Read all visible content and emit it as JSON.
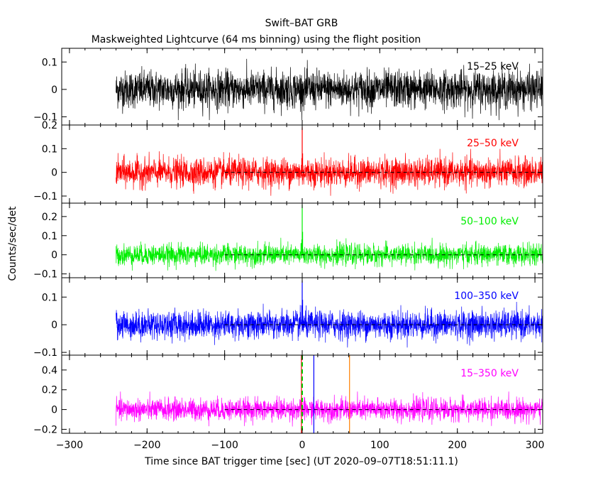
{
  "title": "Swift–BAT GRB",
  "subtitle": "Maskweighted Lightcurve (64 ms binning) using the flight position",
  "chart_data": {
    "type": "line",
    "title": "Swift–BAT GRB",
    "subtitle": "Maskweighted Lightcurve (64 ms binning) using the flight position",
    "xlabel": "Time since BAT trigger time [sec] (UT 2020–09–07T18:51:11.1)",
    "ylabel": "Counts/sec/det",
    "xlim": [
      -310,
      310
    ],
    "x_ticks": [
      -300,
      -200,
      -100,
      0,
      100,
      200,
      300
    ],
    "x_tick_labels": [
      "−300",
      "−200",
      "−100",
      "0",
      "100",
      "200",
      "300"
    ],
    "data_x_range": [
      -240,
      310
    ],
    "grid": false,
    "panels": [
      {
        "name": "15–25 keV",
        "color": "#000000",
        "ylim": [
          -0.13,
          0.15
        ],
        "yticks": [
          0.1,
          0,
          -0.1
        ],
        "ytick_labels": [
          "0.1",
          "0",
          "−0.1"
        ],
        "noise_sigma": 0.034,
        "zero_line": false,
        "spikes": []
      },
      {
        "name": "25–50 keV",
        "color": "#ff0000",
        "ylim": [
          -0.13,
          0.2
        ],
        "yticks": [
          0.2,
          0.1,
          0,
          -0.1
        ],
        "ytick_labels": [
          "0.2",
          "0.1",
          "0",
          "−0.1"
        ],
        "noise_sigma": 0.03,
        "zero_line": true,
        "spikes": [
          {
            "x": 0,
            "y": 0.19
          },
          {
            "x": 0.5,
            "y": 0.08
          },
          {
            "x": -0.5,
            "y": 0.06
          }
        ]
      },
      {
        "name": "50–100 keV",
        "color": "#00ee00",
        "ylim": [
          -0.12,
          0.27
        ],
        "yticks": [
          0.2,
          0.1,
          0,
          -0.1
        ],
        "ytick_labels": [
          "0.2",
          "0.1",
          "0",
          "−0.1"
        ],
        "noise_sigma": 0.027,
        "zero_line": true,
        "spikes": [
          {
            "x": 0,
            "y": 0.26
          },
          {
            "x": 0.5,
            "y": 0.12
          },
          {
            "x": -0.5,
            "y": 0.08
          }
        ]
      },
      {
        "name": "100–350 keV",
        "color": "#0000ff",
        "ylim": [
          -0.11,
          0.17
        ],
        "yticks": [
          0.1,
          0,
          -0.1
        ],
        "ytick_labels": [
          "0.1",
          "0",
          "−0.1"
        ],
        "noise_sigma": 0.025,
        "zero_line": true,
        "spikes": [
          {
            "x": 0,
            "y": 0.16
          },
          {
            "x": 0.5,
            "y": 0.09
          },
          {
            "x": -0.5,
            "y": 0.07
          }
        ]
      },
      {
        "name": "15–350 keV",
        "color": "#ff00ff",
        "ylim": [
          -0.24,
          0.55
        ],
        "yticks": [
          0.4,
          0.2,
          0,
          -0.2
        ],
        "ytick_labels": [
          "0.4",
          "0.2",
          "0",
          "−0.2"
        ],
        "noise_sigma": 0.055,
        "zero_line": true,
        "spikes": [],
        "markers": [
          {
            "x": -1,
            "color": "#ff0000",
            "style": "solid"
          },
          {
            "x": 0,
            "color": "#00cc00",
            "style": "dashed"
          },
          {
            "x": 15,
            "color": "#0000ff",
            "style": "solid"
          },
          {
            "x": 61,
            "color": "#ff8000",
            "style": "solid"
          }
        ]
      }
    ]
  }
}
